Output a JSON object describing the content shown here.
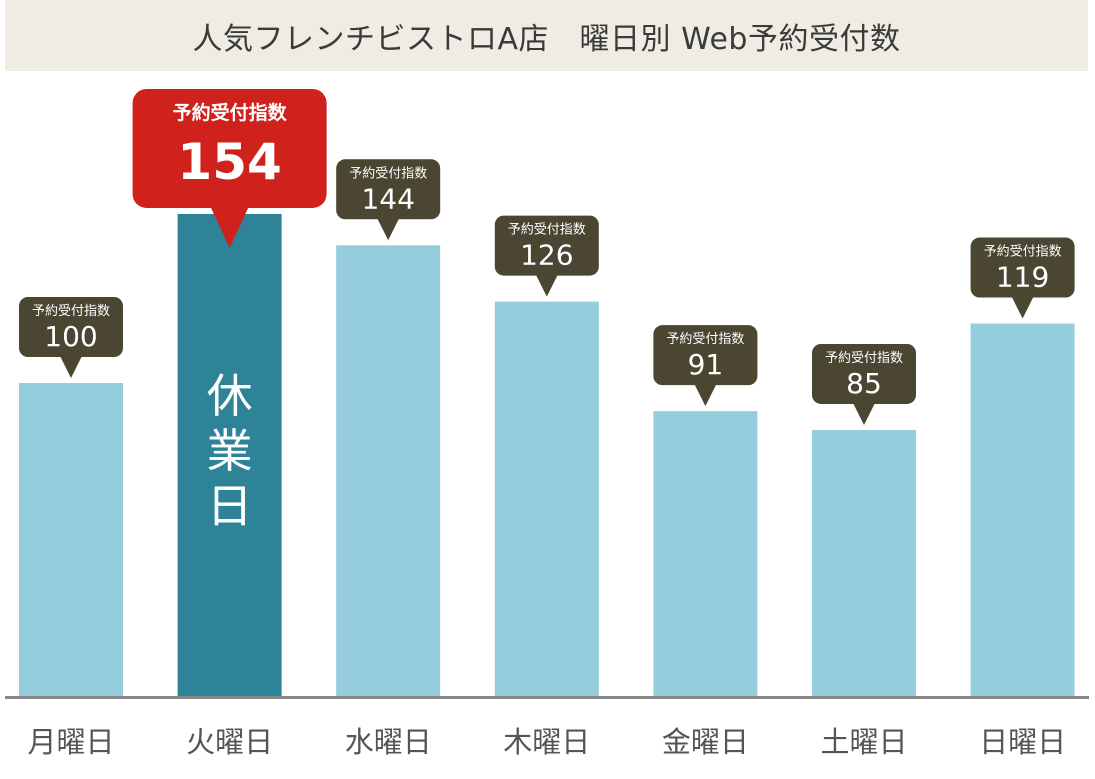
{
  "title": "人気フレンチビストロA店　曜日別 Web予約受付数",
  "chart_data": {
    "type": "bar",
    "title": "人気フレンチビストロA店　曜日別 Web予約受付数",
    "xlabel": "",
    "ylabel": "",
    "categories": [
      "月曜日",
      "火曜日",
      "水曜日",
      "木曜日",
      "金曜日",
      "土曜日",
      "日曜日"
    ],
    "values": [
      100,
      154,
      144,
      126,
      91,
      85,
      119
    ],
    "value_label": "予約受付指数",
    "highlight_index": 1,
    "highlight_text": "休業日",
    "ylim": [
      0,
      200
    ],
    "grid": false,
    "colors": {
      "bar": "#96cddd",
      "bar_highlight": "#2f8399",
      "callout": "#4a4631",
      "callout_highlight": "#d0221c",
      "axis": "#888888",
      "tick_label": "#555555",
      "title_bg": "#efede3"
    }
  }
}
